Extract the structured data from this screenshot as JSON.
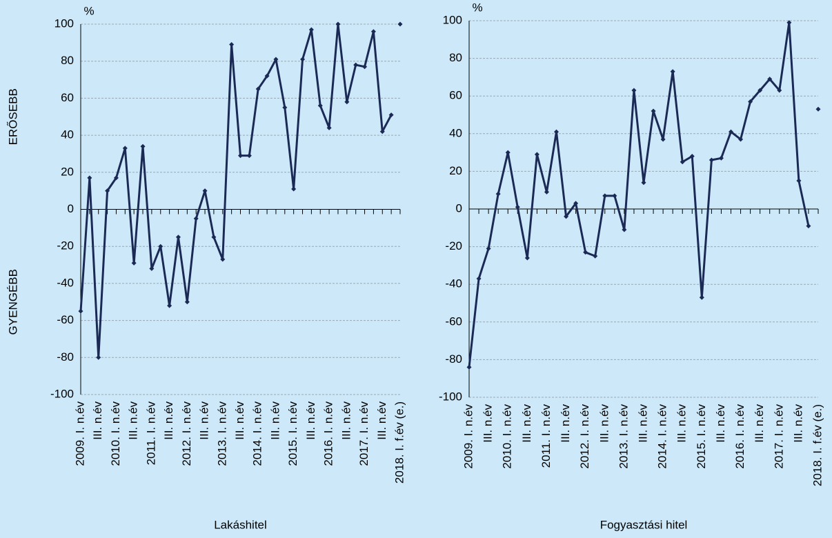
{
  "chart_data": [
    {
      "type": "line",
      "title": "Lakáshitel",
      "unit": "%",
      "y_label_upper": "ERŐSEBB",
      "y_label_lower": "GYENGÉBB",
      "categories": [
        "2009. I. n.év",
        null,
        "III. n.év",
        null,
        "2010. I. n.év",
        null,
        "III. n.év",
        null,
        "2011. I. n.év",
        null,
        "III. n.év",
        null,
        "2012. I. n.év",
        null,
        "III. n.év",
        null,
        "2013. I. n.év",
        null,
        "III. n.év",
        null,
        "2014. I. n.év",
        null,
        "III. n.év",
        null,
        "2015. I. n.év",
        null,
        "III. n.év",
        null,
        "2016. I. n.év",
        null,
        "III. n.év",
        null,
        "2017. I. n.év",
        null,
        "III. n.év",
        null,
        "2018. I. f.év (e.)"
      ],
      "series": [
        {
          "color": "#1b2a55",
          "mode": "lines+markers",
          "values": [
            -55,
            17,
            -80,
            10,
            17,
            33,
            -29,
            34,
            -32,
            -20,
            -52,
            -15,
            -50,
            -5,
            10,
            -15,
            -27,
            89,
            29,
            29,
            65,
            72,
            81,
            55,
            11,
            81,
            97,
            56,
            44,
            100,
            58,
            78,
            77,
            96,
            42,
            51,
            null
          ]
        },
        {
          "color": "#1b2a55",
          "mode": "markers",
          "values": [
            null,
            null,
            null,
            null,
            null,
            null,
            null,
            null,
            null,
            null,
            null,
            null,
            null,
            null,
            null,
            null,
            null,
            null,
            null,
            null,
            null,
            null,
            null,
            null,
            null,
            null,
            null,
            null,
            null,
            null,
            null,
            null,
            null,
            null,
            null,
            null,
            100
          ]
        }
      ],
      "ylim": [
        -100,
        100
      ],
      "yticks": [
        -100,
        -80,
        -60,
        -40,
        -20,
        0,
        20,
        40,
        60,
        80,
        100
      ],
      "grid": true
    },
    {
      "type": "line",
      "title": "Fogyasztási hitel",
      "unit": "%",
      "categories": [
        "2009. I. n.év",
        null,
        "III. n.év",
        null,
        "2010. I. n.év",
        null,
        "III. n.év",
        null,
        "2011. I. n.év",
        null,
        "III. n.év",
        null,
        "2012. I. n.év",
        null,
        "III. n.év",
        null,
        "2013. I. n.év",
        null,
        "III. n.év",
        null,
        "2014. I. n.év",
        null,
        "III. n.év",
        null,
        "2015. I. n.év",
        null,
        "III. n.év",
        null,
        "2016. I. n.év",
        null,
        "III. n.év",
        null,
        "2017. I. n.év",
        null,
        "III. n.év",
        null,
        "2018. I. f.év (e.)"
      ],
      "series": [
        {
          "color": "#1b2a55",
          "mode": "lines+markers",
          "values": [
            -84,
            -37,
            -21,
            8,
            30,
            1,
            -26,
            29,
            9,
            41,
            -4,
            3,
            -23,
            -25,
            7,
            7,
            -11,
            63,
            14,
            52,
            37,
            73,
            25,
            28,
            -47,
            26,
            27,
            41,
            37,
            57,
            63,
            69,
            63,
            99,
            15,
            -9,
            null
          ]
        },
        {
          "color": "#1b2a55",
          "mode": "markers",
          "values": [
            null,
            null,
            null,
            null,
            null,
            null,
            null,
            null,
            null,
            null,
            null,
            null,
            null,
            null,
            null,
            null,
            null,
            null,
            null,
            null,
            null,
            null,
            null,
            null,
            null,
            null,
            null,
            null,
            null,
            null,
            null,
            null,
            null,
            null,
            null,
            null,
            53
          ]
        }
      ],
      "ylim": [
        -100,
        100
      ],
      "yticks": [
        -100,
        -80,
        -60,
        -40,
        -20,
        0,
        20,
        40,
        60,
        80,
        100
      ],
      "grid": true
    }
  ]
}
